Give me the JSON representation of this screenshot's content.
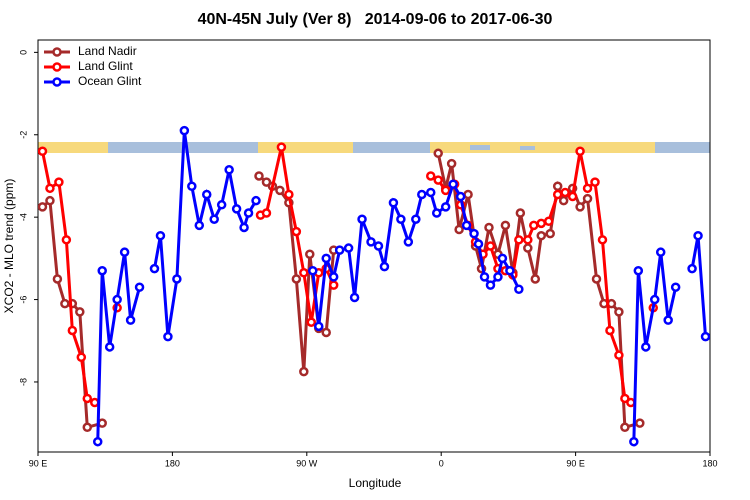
{
  "chart_data": {
    "type": "line",
    "title": "40N-45N July (Ver 8)   2014-09-06 to 2017-06-30",
    "x_label": "Longitude",
    "y_label": "XCO2 - MLO trend (ppm)",
    "xlim": [
      90,
      540
    ],
    "ylim": [
      -9.7,
      0.3
    ],
    "xticks": [
      {
        "value": 90,
        "label": "90 E"
      },
      {
        "value": 180,
        "label": "180"
      },
      {
        "value": 270,
        "label": "90 W"
      },
      {
        "value": 360,
        "label": "0"
      },
      {
        "value": 450,
        "label": "90 E"
      },
      {
        "value": 540,
        "label": "180"
      }
    ],
    "yticks": [
      0,
      -2,
      -4,
      -6,
      -8
    ],
    "legend": "top-left",
    "series": [
      {
        "name": "Land Nadir",
        "color": "#a52a2a",
        "x": [
          93,
          98,
          103,
          108,
          113,
          118,
          123,
          133,
          null,
          238,
          243,
          247,
          252,
          258,
          263,
          268,
          272,
          278,
          283,
          288,
          null,
          358,
          363,
          367,
          372,
          378,
          383,
          387,
          392,
          398,
          403,
          408,
          413,
          418,
          423,
          427,
          433,
          438,
          442,
          448,
          453,
          458,
          464,
          469,
          474,
          479,
          483,
          493
        ],
        "values": [
          -3.75,
          -3.6,
          -5.5,
          -6.1,
          -6.1,
          -6.3,
          -9.1,
          -9.0,
          null,
          -3.0,
          -3.15,
          -3.25,
          -3.35,
          -3.65,
          -5.5,
          -7.75,
          -4.9,
          -6.7,
          -6.8,
          -4.8,
          null,
          -2.45,
          -3.3,
          -2.7,
          -4.3,
          -3.45,
          -4.7,
          -5.25,
          -4.25,
          -4.9,
          -4.2,
          -5.35,
          -3.9,
          -4.75,
          -5.5,
          -4.45,
          -4.4,
          -3.25,
          -3.6,
          -3.3,
          -3.75,
          -3.55,
          -5.5,
          -6.1,
          -6.1,
          -6.3,
          -9.1,
          -9.0
        ]
      },
      {
        "name": "Land Glint",
        "color": "#ff0000",
        "x": [
          93,
          98,
          104,
          109,
          113,
          119,
          123,
          128,
          null,
          143,
          null,
          239,
          243,
          253,
          258,
          263,
          268,
          273,
          278,
          283,
          288,
          null,
          353,
          358,
          363,
          369,
          373,
          378,
          383,
          388,
          393,
          398,
          403,
          408,
          412,
          418,
          422,
          427,
          432,
          438,
          443,
          448,
          453,
          458,
          463,
          468,
          473,
          479,
          483,
          487,
          null,
          502
        ],
        "values": [
          -2.4,
          -3.3,
          -3.15,
          -4.55,
          -6.75,
          -7.4,
          -8.4,
          -8.5,
          null,
          -6.2,
          null,
          -3.95,
          -3.9,
          -2.3,
          -3.45,
          -4.35,
          -5.35,
          -6.55,
          -5.35,
          -5.25,
          -5.65,
          null,
          -3.0,
          -3.1,
          -3.35,
          -3.2,
          -3.7,
          -4.2,
          -4.6,
          -4.9,
          -4.7,
          -5.25,
          -5.3,
          -5.4,
          -4.55,
          -4.55,
          -4.2,
          -4.15,
          -4.1,
          -3.45,
          -3.4,
          -3.5,
          -2.4,
          -3.3,
          -3.15,
          -4.55,
          -6.75,
          -7.35,
          -8.4,
          -8.5,
          null,
          -6.2
        ]
      },
      {
        "name": "Ocean Glint",
        "color": "#0000ff",
        "x": [
          130,
          133,
          138,
          143,
          148,
          152,
          158,
          null,
          168,
          172,
          177,
          183,
          188,
          193,
          198,
          203,
          208,
          213,
          218,
          223,
          228,
          231,
          236,
          null,
          274,
          278,
          283,
          288,
          292,
          298,
          302,
          307,
          313,
          318,
          322,
          328,
          333,
          338,
          343,
          347,
          353,
          357,
          363,
          368,
          373,
          377,
          382,
          385,
          389,
          393,
          398,
          401,
          406,
          412,
          null,
          489,
          492,
          497,
          503,
          507,
          512,
          517,
          null,
          528,
          532,
          537
        ],
        "values": [
          -9.45,
          -5.3,
          -7.15,
          -6.0,
          -4.85,
          -6.5,
          -5.7,
          null,
          -5.25,
          -4.45,
          -6.9,
          -5.5,
          -1.9,
          -3.25,
          -4.2,
          -3.45,
          -4.05,
          -3.7,
          -2.85,
          -3.8,
          -4.25,
          -3.9,
          -3.6,
          null,
          -5.3,
          -6.65,
          -5.0,
          -5.45,
          -4.8,
          -4.75,
          -5.95,
          -4.05,
          -4.6,
          -4.7,
          -5.2,
          -3.65,
          -4.05,
          -4.6,
          -4.05,
          -3.45,
          -3.4,
          -3.9,
          -3.75,
          -3.2,
          -3.5,
          -4.2,
          -4.4,
          -4.65,
          -5.45,
          -5.65,
          -5.45,
          -5.0,
          -5.3,
          -5.75,
          null,
          -9.45,
          -5.3,
          -7.15,
          -6.0,
          -4.85,
          -6.5,
          -5.7,
          null,
          -5.25,
          -4.45,
          -6.9
        ]
      }
    ]
  }
}
